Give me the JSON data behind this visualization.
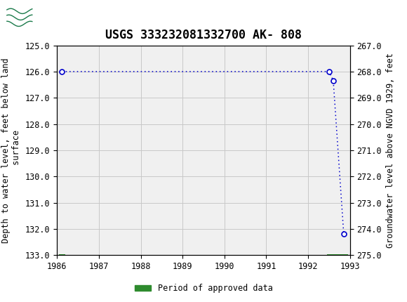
{
  "title": "USGS 333232081332700 AK- 808",
  "ylabel_left": "Depth to water level, feet below land\n surface",
  "ylabel_right": "Groundwater level above NGVD 1929, feet",
  "xlim": [
    1986,
    1993
  ],
  "ylim_left": [
    125.0,
    133.0
  ],
  "ylim_right": [
    275.0,
    267.0
  ],
  "yticks_left": [
    125.0,
    126.0,
    127.0,
    128.0,
    129.0,
    130.0,
    131.0,
    132.0,
    133.0
  ],
  "yticks_right": [
    275.0,
    274.0,
    273.0,
    272.0,
    271.0,
    270.0,
    269.0,
    268.0,
    267.0
  ],
  "xticks": [
    1986,
    1987,
    1988,
    1989,
    1990,
    1991,
    1992,
    1993
  ],
  "data_x": [
    1986.12,
    1992.5,
    1992.6,
    1992.85
  ],
  "data_y": [
    126.0,
    126.0,
    126.35,
    132.2
  ],
  "line_color": "#0000cc",
  "marker_color": "#0000cc",
  "marker_face": "white",
  "green_bar_x1": 1986.05,
  "green_bar_x2": 1986.2,
  "green_bar2_x1": 1992.45,
  "green_bar2_x2": 1992.95,
  "green_color": "#2e8b2e",
  "header_bg": "#1a7a4a",
  "plot_bg": "#f0f0f0",
  "grid_color": "#c8c8c8",
  "font_family": "monospace",
  "title_fontsize": 12,
  "axis_label_fontsize": 8.5,
  "tick_fontsize": 8.5
}
